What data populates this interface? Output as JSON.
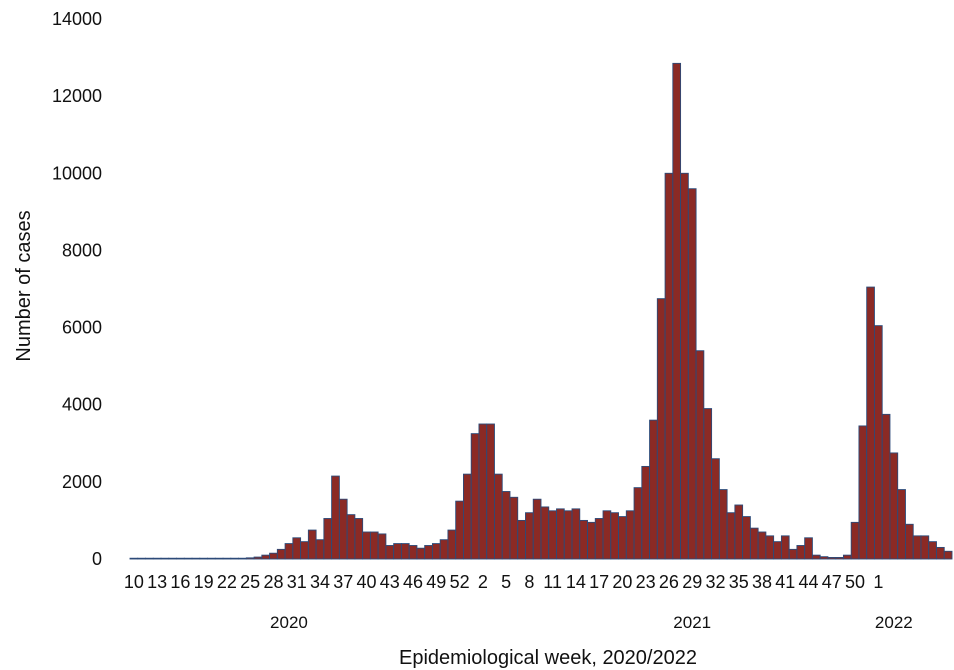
{
  "chart_data": {
    "type": "bar",
    "xlabel": "Epidemiological week, 2020/2022",
    "ylabel": "Number of cases",
    "ylim": [
      0,
      14000
    ],
    "yticks": [
      0,
      2000,
      4000,
      6000,
      8000,
      10000,
      12000,
      14000
    ],
    "grid": false,
    "bar_color": "#8b2a25",
    "bar_edge_color": "#2c4a78",
    "tick_labels": [
      {
        "text": "10",
        "index": 0
      },
      {
        "text": "13",
        "index": 3
      },
      {
        "text": "16",
        "index": 6
      },
      {
        "text": "19",
        "index": 9
      },
      {
        "text": "22",
        "index": 12
      },
      {
        "text": "25",
        "index": 15
      },
      {
        "text": "28",
        "index": 18
      },
      {
        "text": "31",
        "index": 21
      },
      {
        "text": "34",
        "index": 24
      },
      {
        "text": "37",
        "index": 27
      },
      {
        "text": "40",
        "index": 30
      },
      {
        "text": "43",
        "index": 33
      },
      {
        "text": "46",
        "index": 36
      },
      {
        "text": "49",
        "index": 39
      },
      {
        "text": "52",
        "index": 42
      },
      {
        "text": "2",
        "index": 45
      },
      {
        "text": "5",
        "index": 48
      },
      {
        "text": "8",
        "index": 51
      },
      {
        "text": "11",
        "index": 54
      },
      {
        "text": "14",
        "index": 57
      },
      {
        "text": "17",
        "index": 60
      },
      {
        "text": "20",
        "index": 63
      },
      {
        "text": "23",
        "index": 66
      },
      {
        "text": "26",
        "index": 69
      },
      {
        "text": "29",
        "index": 72
      },
      {
        "text": "32",
        "index": 75
      },
      {
        "text": "35",
        "index": 78
      },
      {
        "text": "38",
        "index": 81
      },
      {
        "text": "41",
        "index": 84
      },
      {
        "text": "44",
        "index": 87
      },
      {
        "text": "47",
        "index": 90
      },
      {
        "text": "50",
        "index": 93
      },
      {
        "text": "1",
        "index": 96
      }
    ],
    "year_labels": [
      {
        "text": "2020",
        "index": 20
      },
      {
        "text": "2021",
        "index": 72
      },
      {
        "text": "2022",
        "index": 98
      }
    ],
    "values": [
      20,
      20,
      20,
      20,
      20,
      20,
      20,
      20,
      20,
      20,
      20,
      20,
      20,
      20,
      20,
      30,
      50,
      100,
      150,
      250,
      400,
      550,
      450,
      750,
      500,
      1050,
      2150,
      1550,
      1150,
      1050,
      700,
      700,
      650,
      350,
      400,
      400,
      350,
      280,
      350,
      400,
      500,
      750,
      1500,
      2200,
      3250,
      3500,
      3500,
      2200,
      1750,
      1600,
      1000,
      1200,
      1550,
      1350,
      1250,
      1300,
      1250,
      1300,
      1000,
      950,
      1050,
      1250,
      1200,
      1100,
      1250,
      1850,
      2400,
      3600,
      6750,
      10000,
      12850,
      10000,
      9600,
      5400,
      3900,
      2600,
      1800,
      1200,
      1400,
      1100,
      800,
      700,
      600,
      450,
      600,
      250,
      350,
      550,
      100,
      60,
      40,
      40,
      100,
      950,
      3450,
      7050,
      6050,
      3750,
      2750,
      1800,
      900,
      600,
      600,
      450,
      300,
      200
    ]
  }
}
